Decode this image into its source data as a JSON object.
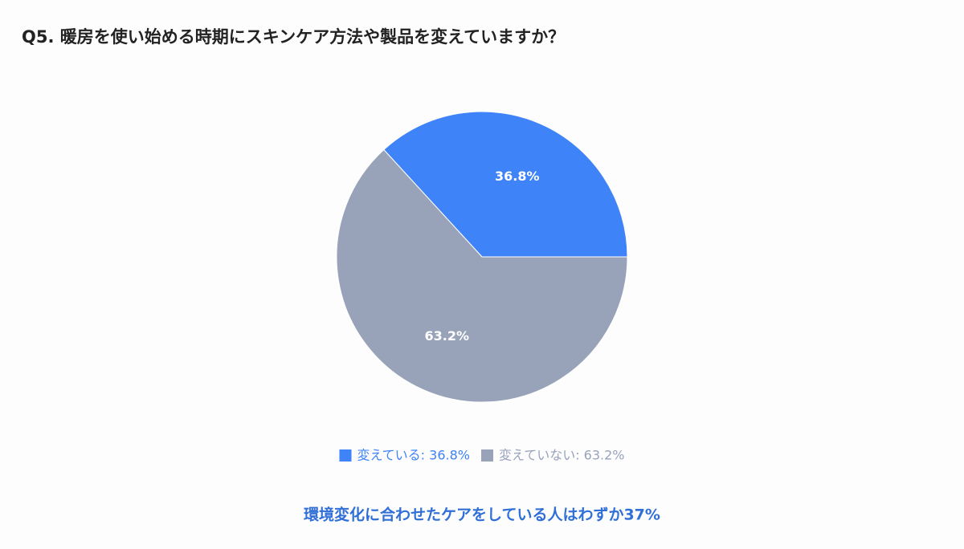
{
  "chart_data": {
    "type": "pie",
    "title": "Q5. 暖房を使い始める時期にスキンケア方法や製品を変えていますか？",
    "categories": [
      "変えている: 36.8%",
      "変えていない: 63.2%"
    ],
    "values": [
      36.8,
      63.2
    ],
    "value_labels": [
      "36.8%",
      "63.2%"
    ],
    "colors": [
      "#3f83f8",
      "#98a3ba"
    ],
    "annotation": "環境変化に合わせたケアをしている人はわずか37%"
  }
}
